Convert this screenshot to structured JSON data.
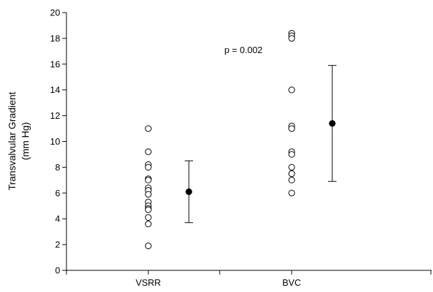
{
  "chart_data": {
    "type": "scatter",
    "title": "",
    "xlabel": "",
    "ylabel_lines": [
      "Transvalvular Gradient",
      "(mm Hg)"
    ],
    "ylim": [
      0,
      20
    ],
    "yticks": [
      0,
      2,
      4,
      6,
      8,
      10,
      12,
      14,
      16,
      18,
      20
    ],
    "categories": [
      "VSRR",
      "BVC"
    ],
    "grid": false,
    "legend": "none",
    "annotation": "p = 0.002",
    "series": [
      {
        "category": "VSRR",
        "points": [
          11.0,
          9.2,
          8.2,
          8.0,
          7.1,
          7.0,
          6.4,
          6.2,
          5.9,
          5.3,
          5.0,
          4.8,
          4.7,
          4.1,
          3.6,
          1.9
        ],
        "mean": 6.1,
        "error_low": 3.7,
        "error_high": 8.5
      },
      {
        "category": "BVC",
        "points": [
          18.4,
          18.2,
          18.0,
          14.0,
          11.2,
          11.0,
          9.2,
          9.0,
          8.0,
          7.5,
          7.0,
          6.0
        ],
        "mean": 11.4,
        "error_low": 6.9,
        "error_high": 15.9
      }
    ],
    "marker_colors": {
      "individual": "#ffffff",
      "individual_stroke": "#000000",
      "mean": "#000000"
    }
  }
}
